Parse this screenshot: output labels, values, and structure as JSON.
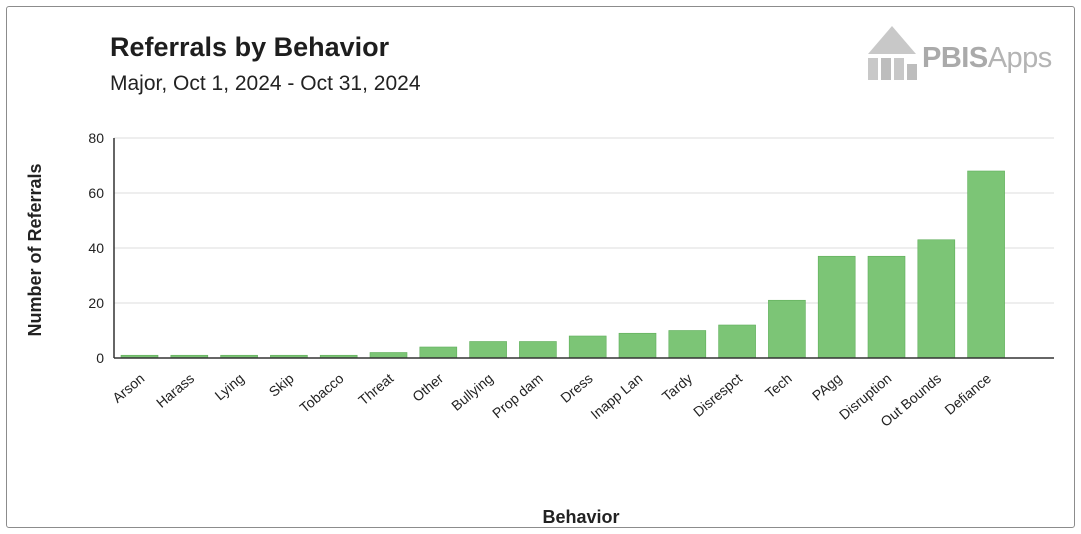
{
  "header": {
    "title": "Referrals by Behavior",
    "subtitle": "Major, Oct 1, 2024 - Oct 31, 2024"
  },
  "logo": {
    "brand": "PBIS",
    "suffix": "Apps"
  },
  "colors": {
    "bar": "#7cc576",
    "bar_edge": "#5fae5a",
    "grid": "#dcdcdc",
    "axis": "#333333"
  },
  "chart_data": {
    "type": "bar",
    "title": "Referrals by Behavior",
    "subtitle": "Major, Oct 1, 2024 - Oct 31, 2024",
    "xlabel": "Behavior",
    "ylabel": "Number of Referrals",
    "ylim": [
      0,
      80
    ],
    "yticks": [
      0,
      20,
      40,
      60,
      80
    ],
    "grid": true,
    "categories": [
      "Arson",
      "Harass",
      "Lying",
      "Skip",
      "Tobacco",
      "Threat",
      "Other",
      "Bullying",
      "Prop dam",
      "Dress",
      "Inapp Lan",
      "Tardy",
      "Disrespct",
      "Tech",
      "PAgg",
      "Disruption",
      "Out Bounds",
      "Defiance"
    ],
    "values": [
      1,
      1,
      1,
      1,
      1,
      2,
      4,
      6,
      6,
      8,
      9,
      10,
      12,
      21,
      37,
      37,
      43,
      68
    ]
  }
}
